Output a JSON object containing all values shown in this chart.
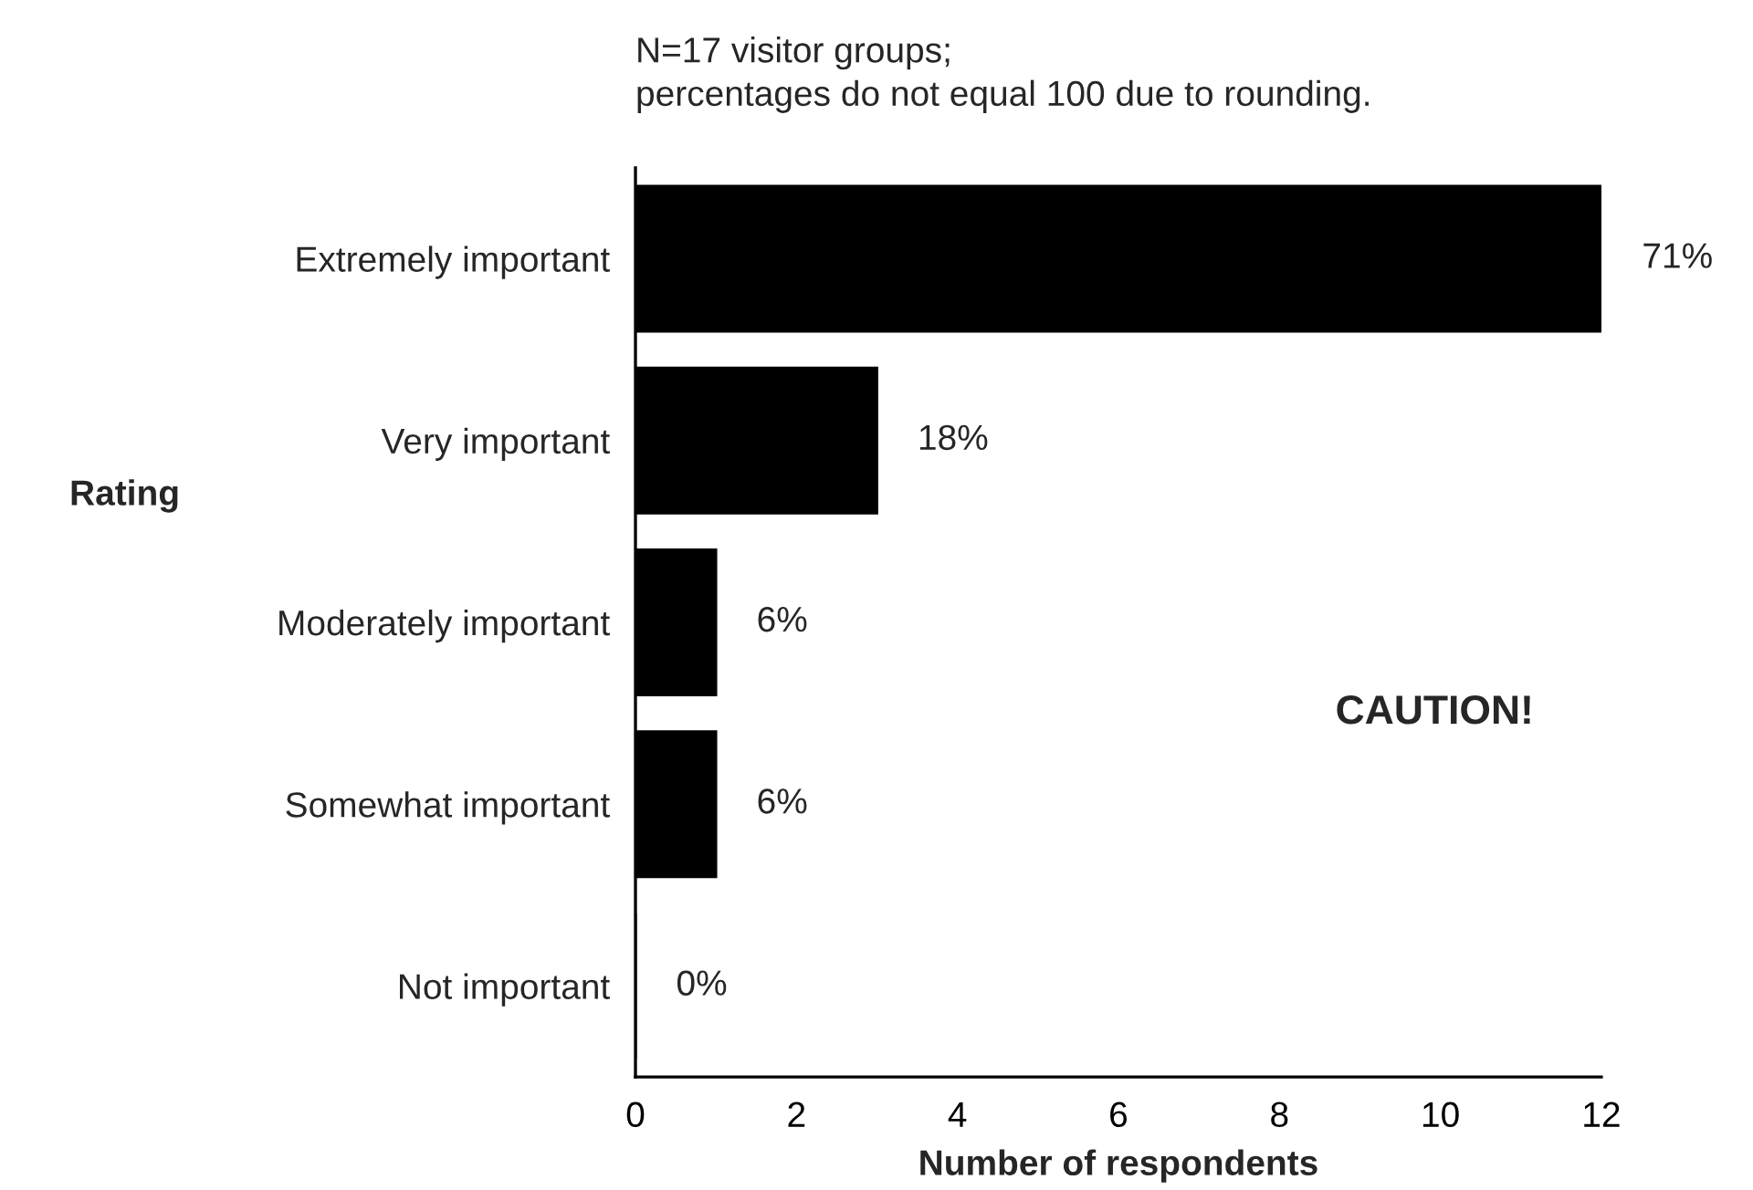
{
  "chart_data": {
    "type": "bar",
    "orientation": "horizontal",
    "xlabel": "Number of respondents",
    "ylabel": "Rating",
    "categories": [
      "Extremely important",
      "Very important",
      "Moderately important",
      "Somewhat important",
      "Not important"
    ],
    "values": [
      12,
      3,
      1,
      1,
      0
    ],
    "color": "#000000",
    "xlim": [
      0,
      12
    ],
    "xticks": [
      0,
      2,
      4,
      6,
      8,
      10,
      12
    ],
    "grid": false,
    "legend": false,
    "annotations": [
      "N=17 visitor groups;\npercentages do not equal 100 due to rounding.",
      "CAUTION!",
      {
        "text": "71%",
        "x": 12,
        "y": "Extremely important"
      },
      {
        "text": "18%",
        "x": 3,
        "y": "Very important"
      },
      {
        "text": "6%",
        "x": 1,
        "y": "Moderately important"
      },
      {
        "text": "6%",
        "x": 1,
        "y": "Somewhat important"
      },
      {
        "text": "0%",
        "x": 0,
        "y": "Not important"
      }
    ]
  }
}
